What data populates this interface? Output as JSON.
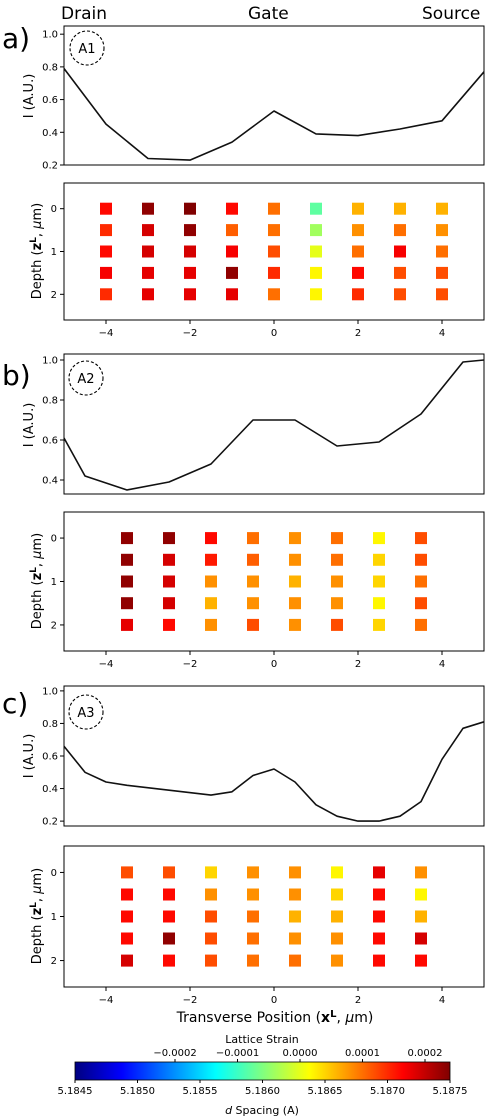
{
  "header": {
    "drain": "Drain",
    "gate": "Gate",
    "source": "Source"
  },
  "panels": [
    {
      "letter": "a)",
      "label": "A1"
    },
    {
      "letter": "b)",
      "label": "A2"
    },
    {
      "letter": "c)",
      "label": "A3"
    }
  ],
  "axes": {
    "intensity_ylabel": "I (A.U.)",
    "depth_ylabel": "Depth (zL, μm)",
    "xlabel": "Transverse Position  (xL, μm)"
  },
  "colorbar": {
    "title": "Lattice Strain",
    "xlabel": "d Spacing (A)",
    "colormap": "jet",
    "range": [
      5.1845,
      5.1875
    ],
    "ticks": [
      "5.1845",
      "5.1850",
      "5.1855",
      "5.1860",
      "5.1865",
      "5.1870",
      "5.1875"
    ],
    "strain_ticks": [
      {
        "d": 5.1853,
        "label": "−0.0002"
      },
      {
        "d": 5.1858,
        "label": "−0.0001"
      },
      {
        "d": 5.1863,
        "label": "0.0000"
      },
      {
        "d": 5.1868,
        "label": "0.0001"
      },
      {
        "d": 5.1873,
        "label": "0.0002"
      }
    ]
  },
  "chart_data": [
    {
      "type": "line",
      "panel": "A1",
      "x": [
        -5,
        -4,
        -3,
        -2,
        -1,
        0,
        1,
        2,
        3,
        4,
        5
      ],
      "y": [
        0.79,
        0.45,
        0.24,
        0.23,
        0.34,
        0.53,
        0.39,
        0.38,
        0.42,
        0.47,
        0.77
      ],
      "xlim": [
        -5,
        5
      ],
      "ylim": [
        0.2,
        1.05
      ],
      "yticks": [
        0.2,
        0.4,
        0.6,
        0.8,
        1.0
      ],
      "ytick_labels": [
        "0.2",
        "0.4",
        "0.6",
        "0.8",
        "1.0"
      ]
    },
    {
      "type": "heatmap",
      "panel": "A1",
      "x": [
        -4,
        -3,
        -2,
        -1,
        0,
        1,
        2,
        3,
        4
      ],
      "depth": [
        0,
        0.5,
        1,
        1.5,
        2
      ],
      "values": [
        [
          5.1871,
          5.18745,
          5.18755,
          5.1871,
          5.1868,
          5.1859,
          5.1866,
          5.1866,
          5.1866
        ],
        [
          5.187,
          5.18725,
          5.18745,
          5.18685,
          5.1868,
          5.1861,
          5.1867,
          5.1868,
          5.1867
        ],
        [
          5.1871,
          5.18725,
          5.18725,
          5.18715,
          5.1869,
          5.1863,
          5.1868,
          5.18715,
          5.1868
        ],
        [
          5.18715,
          5.1872,
          5.1872,
          5.18745,
          5.187,
          5.1864,
          5.1871,
          5.1869,
          5.1869
        ],
        [
          5.187,
          5.1872,
          5.1872,
          5.1872,
          5.1868,
          5.1864,
          5.187,
          5.1869,
          5.1869
        ]
      ],
      "xlim": [
        -5,
        5
      ],
      "ylim": [
        2.6,
        -0.6
      ],
      "xticks": [
        -4,
        -2,
        0,
        2,
        4
      ],
      "xtick_labels": [
        "−4",
        "−2",
        "0",
        "2",
        "4"
      ],
      "yticks": [
        0,
        1,
        2
      ],
      "ytick_labels": [
        "0",
        "1",
        "2"
      ]
    },
    {
      "type": "line",
      "panel": "A2",
      "x": [
        -5,
        -4.5,
        -3.5,
        -2.5,
        -1.5,
        -0.5,
        0.5,
        1.5,
        2.5,
        3.5,
        4.5,
        5
      ],
      "y": [
        0.61,
        0.42,
        0.35,
        0.39,
        0.48,
        0.7,
        0.7,
        0.57,
        0.59,
        0.73,
        0.99,
        1.0
      ],
      "xlim": [
        -5,
        5
      ],
      "ylim": [
        0.33,
        1.03
      ],
      "yticks": [
        0.4,
        0.6,
        0.8,
        1.0
      ],
      "ytick_labels": [
        "0.4",
        "0.6",
        "0.8",
        "1.0"
      ]
    },
    {
      "type": "heatmap",
      "panel": "A2",
      "x": [
        -3.5,
        -2.5,
        -1.5,
        -0.5,
        0.5,
        1.5,
        2.5,
        3.5
      ],
      "depth": [
        0,
        0.5,
        1,
        1.5,
        2
      ],
      "values": [
        [
          5.18745,
          5.18745,
          5.1871,
          5.1868,
          5.1867,
          5.1868,
          5.1864,
          5.1869
        ],
        [
          5.18745,
          5.18725,
          5.18705,
          5.18685,
          5.1867,
          5.1868,
          5.1865,
          5.1869
        ],
        [
          5.18745,
          5.18725,
          5.1867,
          5.1867,
          5.1866,
          5.1867,
          5.1865,
          5.1868
        ],
        [
          5.18745,
          5.18725,
          5.1866,
          5.1867,
          5.1867,
          5.1867,
          5.1864,
          5.1869
        ],
        [
          5.1872,
          5.1871,
          5.1867,
          5.1869,
          5.1867,
          5.1869,
          5.1865,
          5.1868
        ]
      ],
      "xlim": [
        -5,
        5
      ],
      "ylim": [
        2.6,
        -0.6
      ],
      "xticks": [
        -4,
        -2,
        0,
        2,
        4
      ],
      "xtick_labels": [
        "−4",
        "−2",
        "0",
        "2",
        "4"
      ],
      "yticks": [
        0,
        1,
        2
      ],
      "ytick_labels": [
        "0",
        "1",
        "2"
      ]
    },
    {
      "type": "line",
      "panel": "A3",
      "x": [
        -5,
        -4.5,
        -4,
        -3.5,
        -2.5,
        -1.5,
        -1,
        -0.5,
        0,
        0.5,
        1,
        1.5,
        2,
        2.5,
        3,
        3.5,
        4,
        4.5,
        5
      ],
      "y": [
        0.66,
        0.5,
        0.44,
        0.42,
        0.39,
        0.36,
        0.38,
        0.48,
        0.52,
        0.44,
        0.3,
        0.23,
        0.2,
        0.2,
        0.23,
        0.32,
        0.58,
        0.77,
        0.81
      ],
      "xlim": [
        -5,
        5
      ],
      "ylim": [
        0.17,
        1.03
      ],
      "yticks": [
        0.2,
        0.4,
        0.6,
        0.8,
        1.0
      ],
      "ytick_labels": [
        "0.2",
        "0.4",
        "0.6",
        "0.8",
        "1.0"
      ]
    },
    {
      "type": "heatmap",
      "panel": "A3",
      "x": [
        -3.5,
        -2.5,
        -1.5,
        -0.5,
        0.5,
        1.5,
        2.5,
        3.5
      ],
      "depth": [
        0,
        0.5,
        1,
        1.5,
        2
      ],
      "values": [
        [
          5.1869,
          5.1869,
          5.1865,
          5.1867,
          5.1867,
          5.1864,
          5.1872,
          5.1867
        ],
        [
          5.1871,
          5.1871,
          5.1867,
          5.1867,
          5.1867,
          5.1865,
          5.1871,
          5.1864
        ],
        [
          5.1871,
          5.1871,
          5.1869,
          5.1868,
          5.1866,
          5.1866,
          5.1871,
          5.1866
        ],
        [
          5.1871,
          5.18745,
          5.1869,
          5.1868,
          5.1867,
          5.1867,
          5.1871,
          5.18725
        ],
        [
          5.18725,
          5.1871,
          5.1869,
          5.1868,
          5.1868,
          5.1867,
          5.1871,
          5.1871
        ]
      ],
      "xlim": [
        -5,
        5
      ],
      "ylim": [
        2.6,
        -0.6
      ],
      "xticks": [
        -4,
        -2,
        0,
        2,
        4
      ],
      "xtick_labels": [
        "−4",
        "−2",
        "0",
        "2",
        "4"
      ],
      "yticks": [
        0,
        1,
        2
      ],
      "ytick_labels": [
        "0",
        "1",
        "2"
      ]
    }
  ]
}
